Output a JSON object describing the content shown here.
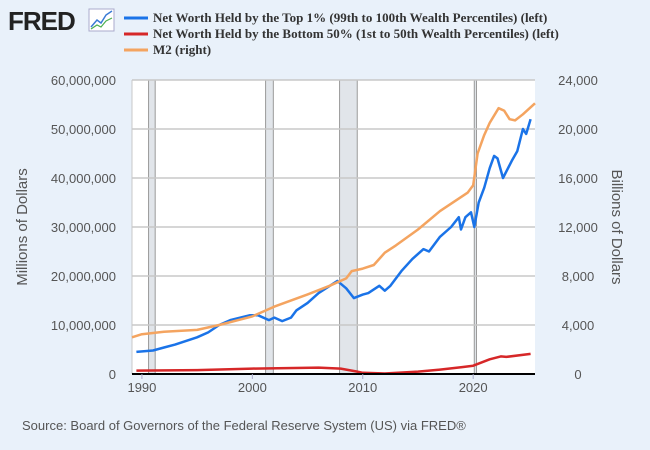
{
  "logo": {
    "text": "FRED"
  },
  "footer": {
    "source": "Source: Board of Governors of the Federal Reserve System (US) via FRED®"
  },
  "chart_data": {
    "type": "line",
    "title": "",
    "xlabel": "",
    "ylabel": "Millions of Dollars",
    "ylabel_right": "Billions of Dollars",
    "xlim": [
      1989.1,
      2025.6
    ],
    "ylim": [
      0,
      60000000
    ],
    "ylim_right": [
      0,
      24000
    ],
    "x_ticks": [
      "1990",
      "2000",
      "2010",
      "2020"
    ],
    "x_tick_values": [
      1990,
      2000,
      2010,
      2020
    ],
    "y_ticks": [
      "0",
      "10,000,000",
      "20,000,000",
      "30,000,000",
      "40,000,000",
      "50,000,000",
      "60,000,000"
    ],
    "y_tick_values": [
      0,
      10000000,
      20000000,
      30000000,
      40000000,
      50000000,
      60000000
    ],
    "y_ticks_right": [
      "0",
      "4,000",
      "8,000",
      "12,000",
      "16,000",
      "20,000",
      "24,000"
    ],
    "grid": true,
    "legend_position": "top",
    "recessions": [
      [
        1990.6,
        1991.2
      ],
      [
        2001.2,
        2001.9
      ],
      [
        2007.9,
        2009.5
      ],
      [
        2020.1,
        2020.3
      ]
    ],
    "series": [
      {
        "name": "Net Worth Held by the Top 1% (99th to 100th Wealth Percentiles) (left)",
        "axis": "left",
        "color": "#1a73e8",
        "x": [
          1989.5,
          1991,
          1992,
          1993,
          1995,
          1996,
          1997,
          1998,
          1999.8,
          2000.5,
          2001.5,
          2002,
          2002.7,
          2003.5,
          2004,
          2005,
          2006,
          2007.7,
          2008.5,
          2009.2,
          2010,
          2010.5,
          2011.5,
          2012,
          2012.5,
          2013.5,
          2014.5,
          2015.5,
          2016,
          2017,
          2018,
          2018.7,
          2018.9,
          2019.3,
          2019.8,
          2020.1,
          2020.5,
          2021,
          2021.5,
          2021.9,
          2022.2,
          2022.7,
          2023.5,
          2024,
          2024.5,
          2024.8,
          2025.2
        ],
        "values": [
          4500000,
          4800000,
          5400000,
          6000000,
          7500000,
          8500000,
          10000000,
          11000000,
          12000000,
          12000000,
          11000000,
          11500000,
          10800000,
          11500000,
          13000000,
          14500000,
          16500000,
          19000000,
          17500000,
          15500000,
          16200000,
          16500000,
          18000000,
          17000000,
          18000000,
          21000000,
          23500000,
          25500000,
          25000000,
          28000000,
          30000000,
          32000000,
          29500000,
          32000000,
          33000000,
          30000000,
          35000000,
          38000000,
          42000000,
          44500000,
          44000000,
          40000000,
          43500000,
          45500000,
          50000000,
          49000000,
          52000000
        ]
      },
      {
        "name": "Net Worth Held by the Bottom 50% (1st to 50th Wealth Percentiles) (left)",
        "axis": "left",
        "color": "#d62728",
        "x": [
          1989.5,
          1995,
          2000,
          2006,
          2008,
          2009.5,
          2010,
          2012,
          2015,
          2017,
          2019,
          2020,
          2021.5,
          2022.5,
          2023,
          2025.2
        ],
        "values": [
          700000,
          800000,
          1100000,
          1300000,
          1100000,
          500000,
          250000,
          100000,
          500000,
          900000,
          1400000,
          1700000,
          3000000,
          3600000,
          3500000,
          4100000
        ]
      },
      {
        "name": "M2 (right)",
        "axis": "right",
        "color": "#f4a460",
        "x": [
          1989.1,
          1990,
          1992,
          1995,
          1997,
          2000,
          2002,
          2005,
          2007,
          2008.5,
          2009,
          2010,
          2011,
          2012,
          2013,
          2015,
          2017,
          2019.5,
          2020.0,
          2020.4,
          2021,
          2021.5,
          2022.3,
          2022.8,
          2023.3,
          2023.8,
          2024.5,
          2025.6
        ],
        "values": [
          3000,
          3250,
          3450,
          3600,
          4000,
          4700,
          5500,
          6500,
          7200,
          7800,
          8400,
          8600,
          8900,
          9900,
          10500,
          11800,
          13300,
          14800,
          15400,
          18000,
          19500,
          20500,
          21700,
          21500,
          20800,
          20700,
          21200,
          22100
        ]
      }
    ]
  }
}
